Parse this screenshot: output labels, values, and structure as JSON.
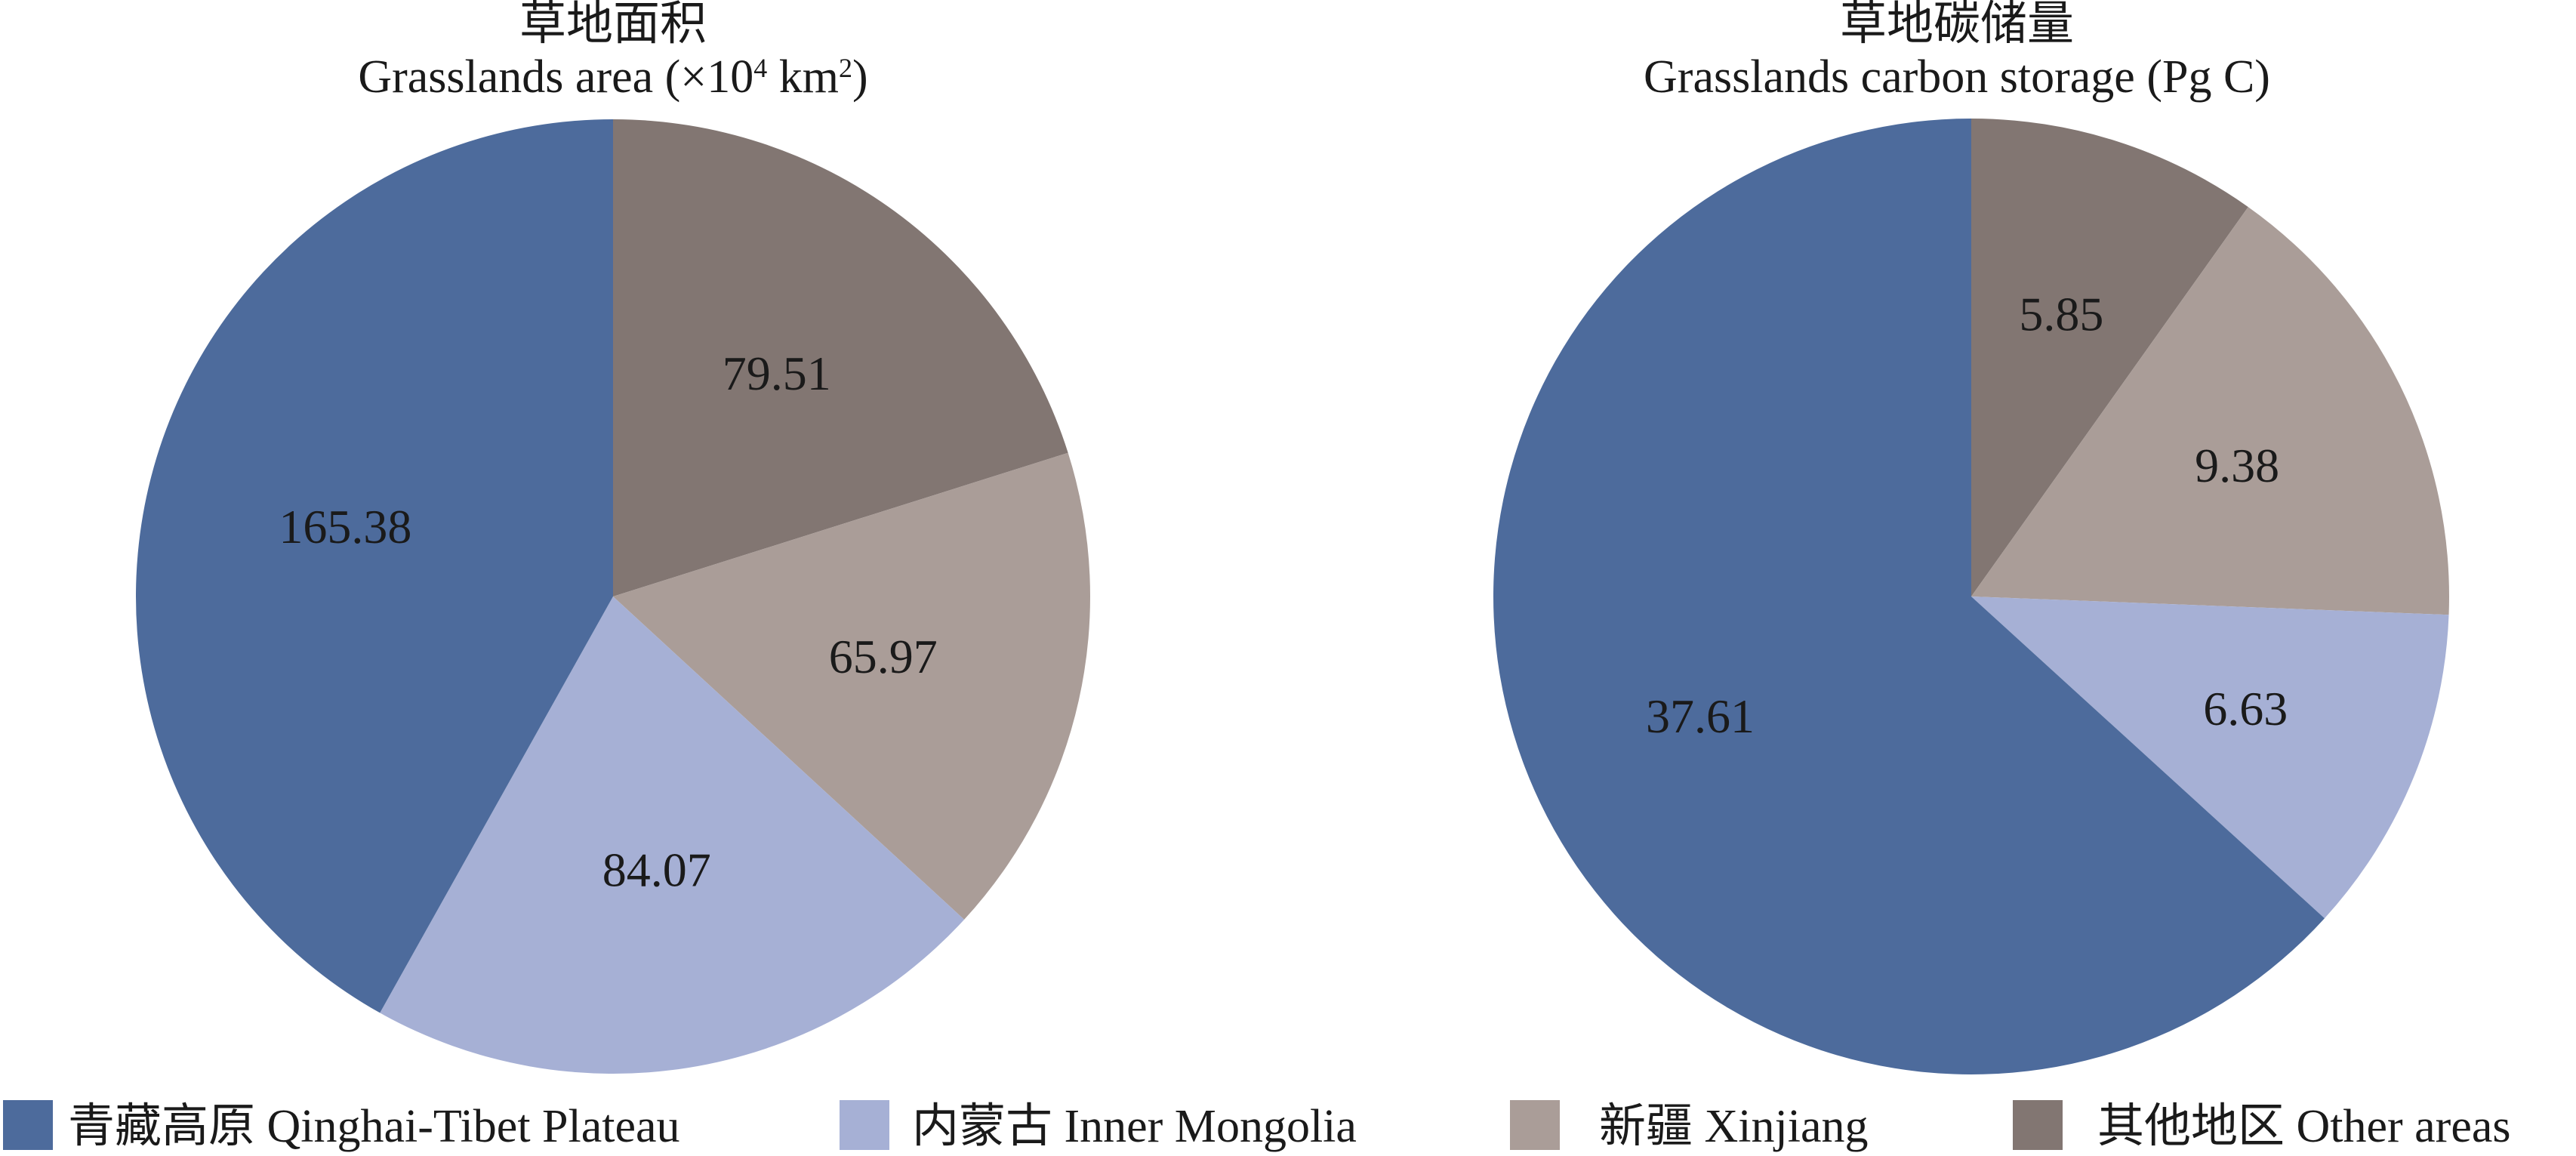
{
  "colors": {
    "qinghai_tibet": "#4d6b9c",
    "inner_mongolia": "#a6b0d5",
    "xinjiang": "#aa9d98",
    "other": "#827672"
  },
  "legend": [
    {
      "key": "qinghai_tibet",
      "label": "青藏高原 Qinghai-Tibet Plateau"
    },
    {
      "key": "inner_mongolia",
      "label": "内蒙古 Inner Mongolia"
    },
    {
      "key": "xinjiang",
      "label": "新疆 Xinjiang"
    },
    {
      "key": "other",
      "label": "其他地区 Other areas"
    }
  ],
  "chart_data": [
    {
      "type": "pie",
      "title_cn": "草地面积",
      "title_en_prefix": "Grasslands area (×10",
      "title_en_sup1": "4",
      "title_en_mid": " km",
      "title_en_sup2": "2",
      "title_en_suffix": ")",
      "start": "top",
      "direction": "clockwise",
      "slices": [
        {
          "key": "other",
          "label": "其他地区 Other areas",
          "value": 79.51,
          "display": "79.51"
        },
        {
          "key": "xinjiang",
          "label": "新疆 Xinjiang",
          "value": 65.97,
          "display": "65.97"
        },
        {
          "key": "inner_mongolia",
          "label": "内蒙古 Inner Mongolia",
          "value": 84.07,
          "display": "84.07"
        },
        {
          "key": "qinghai_tibet",
          "label": "青藏高原 Qinghai-Tibet Plateau",
          "value": 165.38,
          "display": "165.38"
        }
      ]
    },
    {
      "type": "pie",
      "title_cn": "草地碳储量",
      "title_en": "Grasslands carbon storage (Pg C)",
      "start": "top",
      "direction": "clockwise",
      "slices": [
        {
          "key": "other",
          "label": "其他地区 Other areas",
          "value": 5.85,
          "display": "5.85"
        },
        {
          "key": "xinjiang",
          "label": "新疆 Xinjiang",
          "value": 9.38,
          "display": "9.38"
        },
        {
          "key": "inner_mongolia",
          "label": "内蒙古 Inner Mongolia",
          "value": 6.63,
          "display": "6.63"
        },
        {
          "key": "qinghai_tibet",
          "label": "青藏高原 Qinghai-Tibet Plateau",
          "value": 37.61,
          "display": "37.61"
        }
      ]
    }
  ]
}
